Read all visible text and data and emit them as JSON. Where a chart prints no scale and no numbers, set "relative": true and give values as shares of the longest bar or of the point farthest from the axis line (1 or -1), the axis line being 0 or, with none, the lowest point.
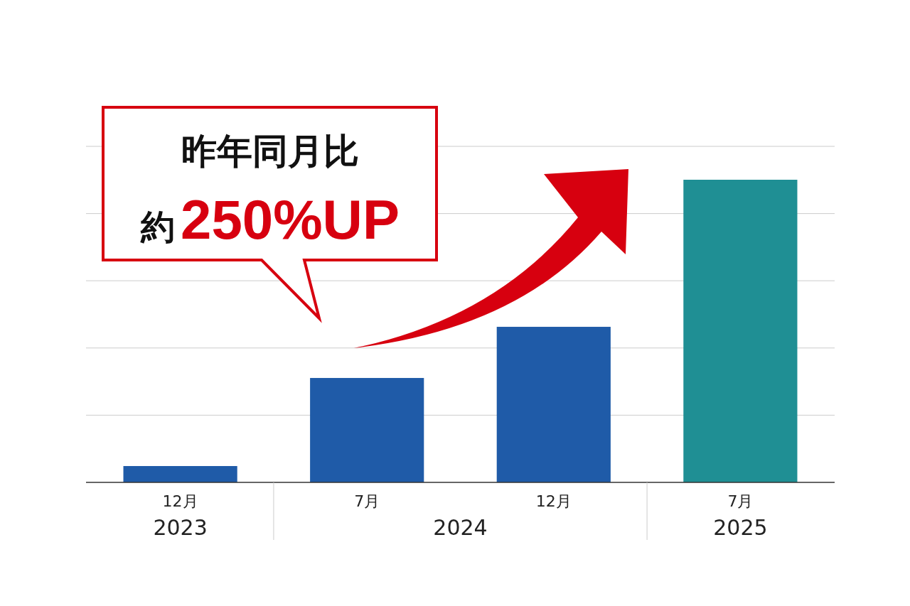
{
  "chart_data": {
    "type": "bar",
    "relative": true,
    "categories": [
      "12月",
      "7月",
      "12月",
      "7月"
    ],
    "values": [
      0.054,
      0.345,
      0.514,
      1
    ],
    "colors": [
      "#1f5ba8",
      "#1f5ba8",
      "#1f5ba8",
      "#1f8f94"
    ],
    "grid": true,
    "annotations": [
      "2023",
      "2024",
      "2025",
      "昨年同月比",
      "約250%UP"
    ]
  }
}
